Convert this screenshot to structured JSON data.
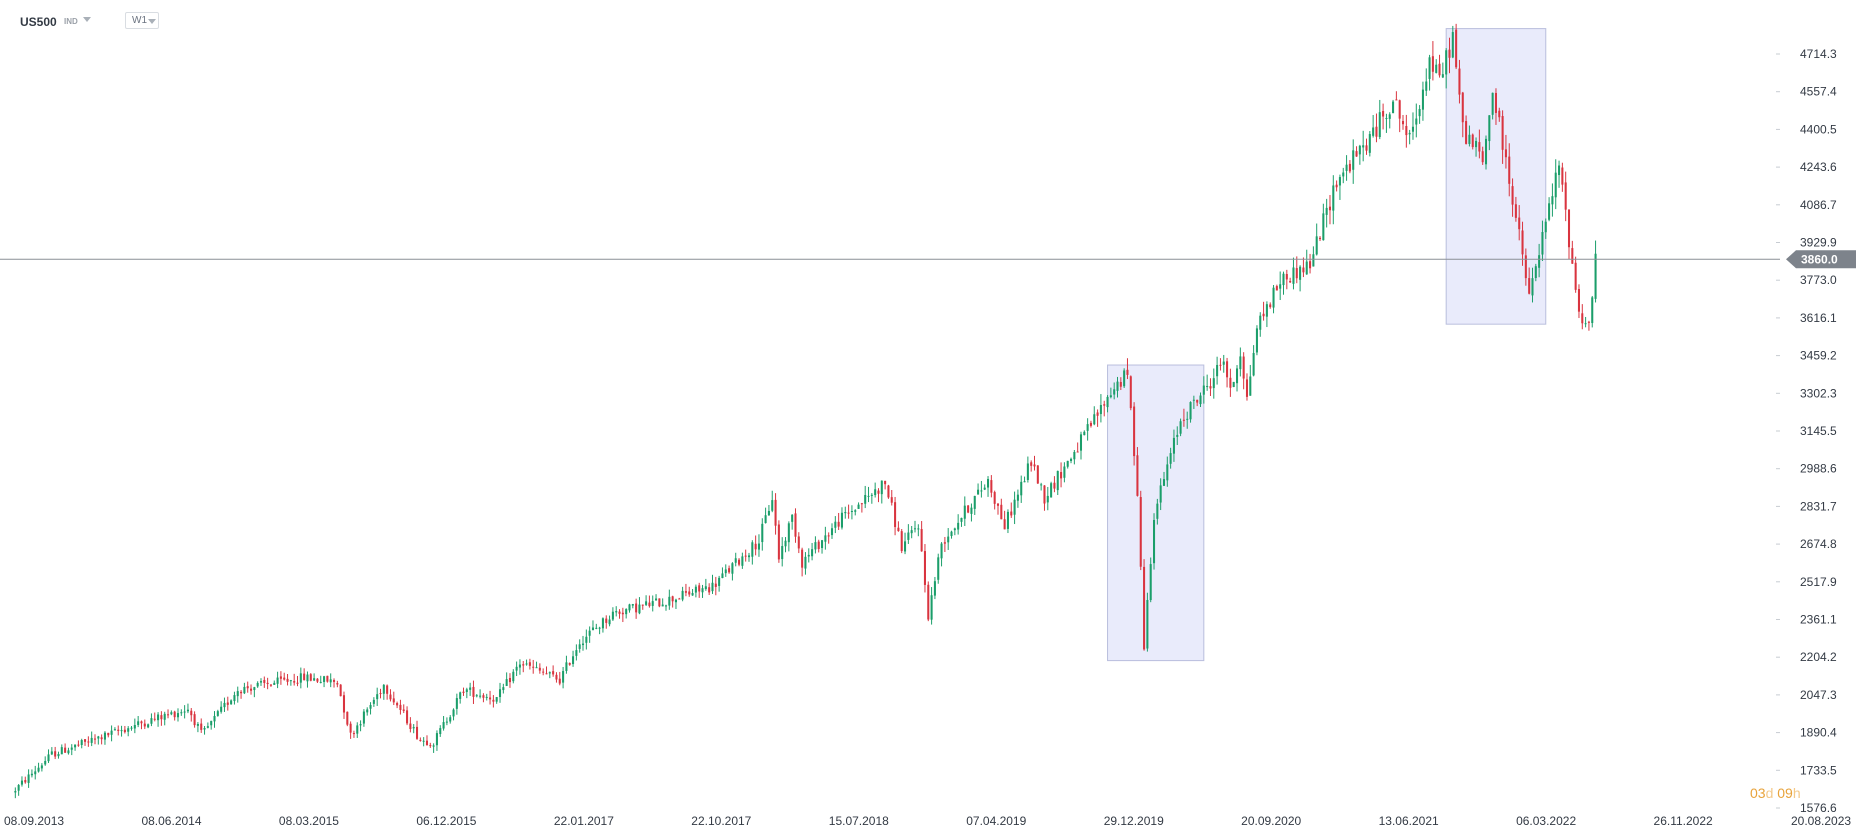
{
  "toolbar": {
    "symbol": "US500",
    "instrument_type": "IND",
    "timeframe": "W1"
  },
  "countdown": {
    "days": "03",
    "day_unit": "d",
    "hours": "09",
    "hour_unit": "h"
  },
  "colors": {
    "up": "#1b9e6a",
    "down": "#d9343f",
    "price_line": "#8a8f96",
    "price_tag": "#7d838b",
    "highlight_fill": "#e9ebfb",
    "highlight_stroke": "#b9bedd"
  },
  "chart_data": {
    "type": "candlestick",
    "title": "",
    "xlabel": "",
    "ylabel": "",
    "grid": false,
    "current_price": 3860.0,
    "current_price_label": "3860.0",
    "ylim": [
      1576.6,
      4800
    ],
    "y_ticks": [
      "4714.3",
      "4557.4",
      "4400.5",
      "4243.6",
      "4086.7",
      "3929.9",
      "3773.0",
      "3616.1",
      "3459.2",
      "3302.3",
      "3145.5",
      "2988.6",
      "2831.7",
      "2674.8",
      "2517.9",
      "2361.1",
      "2204.2",
      "2047.3",
      "1890.4",
      "1733.5",
      "1576.6"
    ],
    "x_ticks": [
      "08.09.2013",
      "08.06.2014",
      "08.03.2015",
      "06.12.2015",
      "22.01.2017",
      "22.10.2017",
      "15.07.2018",
      "07.04.2019",
      "29.12.2019",
      "20.09.2020",
      "13.06.2021",
      "06.03.2022",
      "26.11.2022",
      "20.08.2023"
    ],
    "x_range": [
      "2013-09-08",
      "2023-08-20"
    ],
    "highlights": [
      {
        "from": "2020-01-05",
        "to": "2020-07-26",
        "low": 2190,
        "high": 3420
      },
      {
        "from": "2021-12-19",
        "to": "2022-07-17",
        "low": 3590,
        "high": 4820
      }
    ],
    "path": [
      [
        "2013-09-08",
        1640
      ],
      [
        "2013-12-01",
        1800
      ],
      [
        "2014-06-08",
        1930
      ],
      [
        "2014-09-15",
        1990
      ],
      [
        "2014-10-13",
        1880
      ],
      [
        "2014-12-28",
        2070
      ],
      [
        "2015-05-17",
        2120
      ],
      [
        "2015-07-26",
        2100
      ],
      [
        "2015-08-23",
        1880
      ],
      [
        "2015-11-01",
        2090
      ],
      [
        "2016-01-17",
        1860
      ],
      [
        "2016-02-14",
        1850
      ],
      [
        "2016-04-17",
        2070
      ],
      [
        "2016-06-26",
        2030
      ],
      [
        "2016-08-14",
        2180
      ],
      [
        "2016-11-06",
        2110
      ],
      [
        "2016-12-18",
        2270
      ],
      [
        "2017-03-01",
        2390
      ],
      [
        "2017-06-18",
        2440
      ],
      [
        "2017-09-24",
        2500
      ],
      [
        "2017-12-31",
        2690
      ],
      [
        "2018-01-28",
        2870
      ],
      [
        "2018-02-11",
        2620
      ],
      [
        "2018-03-11",
        2790
      ],
      [
        "2018-04-01",
        2600
      ],
      [
        "2018-06-17",
        2770
      ],
      [
        "2018-09-23",
        2930
      ],
      [
        "2018-10-28",
        2660
      ],
      [
        "2018-12-02",
        2760
      ],
      [
        "2018-12-23",
        2380
      ],
      [
        "2019-01-20",
        2680
      ],
      [
        "2019-04-28",
        2940
      ],
      [
        "2019-06-02",
        2750
      ],
      [
        "2019-07-28",
        3020
      ],
      [
        "2019-08-25",
        2870
      ],
      [
        "2019-11-03",
        3080
      ],
      [
        "2020-01-19",
        3330
      ],
      [
        "2020-02-16",
        3380
      ],
      [
        "2020-03-08",
        2900
      ],
      [
        "2020-03-22",
        2250
      ],
      [
        "2020-04-12",
        2800
      ],
      [
        "2020-06-07",
        3190
      ],
      [
        "2020-08-09",
        3350
      ],
      [
        "2020-09-06",
        3450
      ],
      [
        "2020-09-20",
        3300
      ],
      [
        "2020-10-11",
        3480
      ],
      [
        "2020-10-25",
        3280
      ],
      [
        "2020-11-15",
        3580
      ],
      [
        "2021-01-03",
        3770
      ],
      [
        "2021-03-07",
        3840
      ],
      [
        "2021-05-02",
        4190
      ],
      [
        "2021-07-11",
        4360
      ],
      [
        "2021-08-29",
        4530
      ],
      [
        "2021-10-03",
        4350
      ],
      [
        "2021-11-14",
        4690
      ],
      [
        "2021-12-05",
        4600
      ],
      [
        "2022-01-02",
        4790
      ],
      [
        "2022-01-23",
        4400
      ],
      [
        "2022-02-20",
        4320
      ],
      [
        "2022-03-06",
        4260
      ],
      [
        "2022-03-27",
        4560
      ],
      [
        "2022-05-08",
        4120
      ],
      [
        "2022-06-12",
        3700
      ],
      [
        "2022-07-03",
        3890
      ],
      [
        "2022-08-14",
        4250
      ],
      [
        "2022-09-25",
        3640
      ],
      [
        "2022-10-16",
        3580
      ],
      [
        "2022-10-30",
        3860
      ]
    ]
  }
}
